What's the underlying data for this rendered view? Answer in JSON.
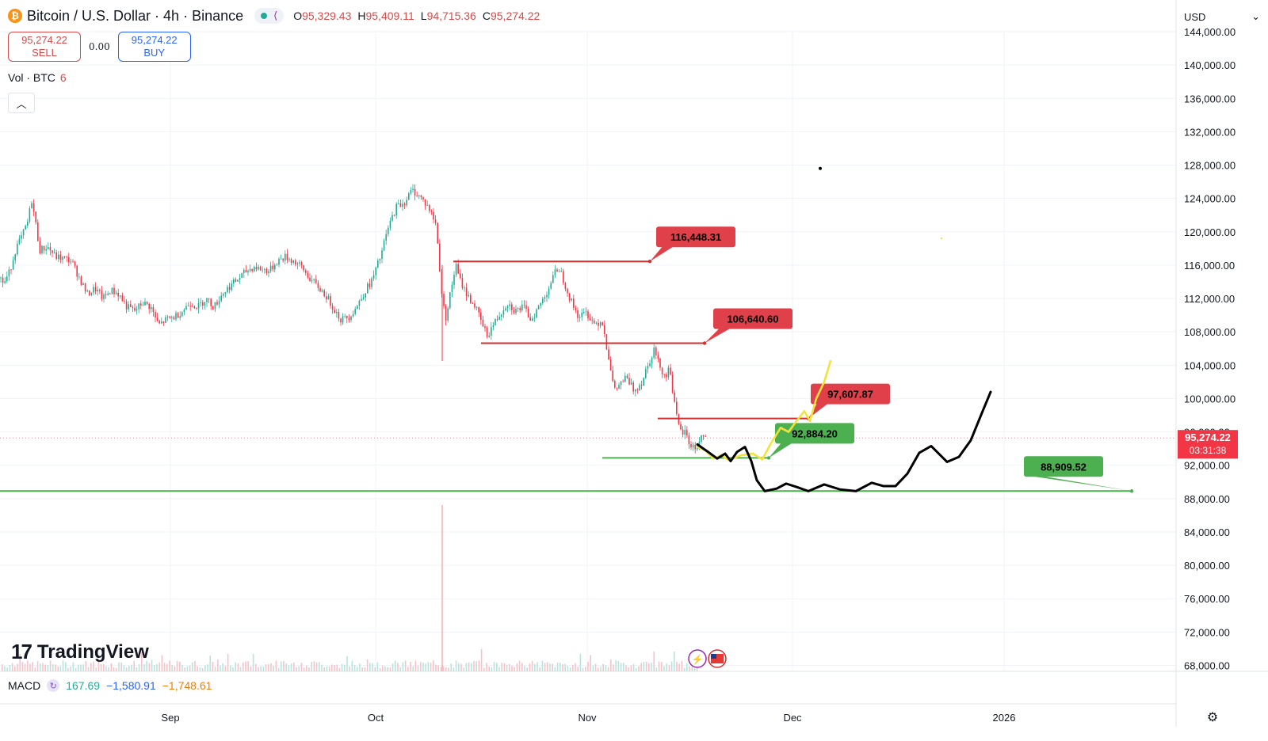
{
  "header": {
    "coin_icon": "bitcoin-icon",
    "title": "Bitcoin / U.S. Dollar · 4h · Binance",
    "ohlc": {
      "o_label": "O",
      "o": "95,329.43",
      "h_label": "H",
      "h": "95,409.11",
      "l_label": "L",
      "l": "94,715.36",
      "c_label": "C",
      "c": "95,274.22"
    }
  },
  "trade": {
    "sell_price": "95,274.22",
    "sell_label": "SELL",
    "spread": "0.00",
    "buy_price": "95,274.22",
    "buy_label": "BUY"
  },
  "volume": {
    "label": "Vol · BTC",
    "value": "6"
  },
  "currency": {
    "value": "USD"
  },
  "branding": {
    "logo_text": "TradingView"
  },
  "macd": {
    "label": "MACD",
    "v1": "167.69",
    "v2": "−1,580.91",
    "v3": "−1,748.61"
  },
  "colors": {
    "up": "#22ab94",
    "down": "#f23645",
    "label_red": "#e0404a",
    "label_green": "#4caf50",
    "line_green": "#4caf50",
    "line_red": "#d32f2f",
    "yellow": "#f2e33c",
    "black": "#000000"
  },
  "chart_data": {
    "type": "candlestick",
    "title": "Bitcoin / U.S. Dollar · 4h · Binance",
    "x_ticks": [
      "Sep",
      "Oct",
      "Nov",
      "Dec",
      "2026"
    ],
    "y_ticks": [
      "68,000.00",
      "72,000.00",
      "76,000.00",
      "80,000.00",
      "84,000.00",
      "88,000.00",
      "92,000.00",
      "96,000.00",
      "100,000.00",
      "104,000.00",
      "108,000.00",
      "112,000.00",
      "116,000.00",
      "120,000.00",
      "124,000.00",
      "128,000.00",
      "132,000.00",
      "136,000.00",
      "140,000.00",
      "144,000.00"
    ],
    "y_range": [
      67500,
      144500
    ],
    "y_scale": "linear",
    "grid": true,
    "last_price": {
      "value": 95274.22,
      "label": "95,274.22",
      "countdown": "03:31:38"
    },
    "price_path": [
      [
        0,
        114500
      ],
      [
        5,
        113800
      ],
      [
        12,
        115200
      ],
      [
        20,
        118000
      ],
      [
        28,
        119500
      ],
      [
        35,
        121200
      ],
      [
        40,
        123800
      ],
      [
        45,
        121000
      ],
      [
        50,
        117800
      ],
      [
        60,
        118200
      ],
      [
        70,
        117000
      ],
      [
        80,
        116800
      ],
      [
        90,
        116500
      ],
      [
        100,
        114500
      ],
      [
        110,
        112500
      ],
      [
        120,
        113200
      ],
      [
        130,
        112000
      ],
      [
        140,
        113000
      ],
      [
        150,
        112500
      ],
      [
        160,
        111000
      ],
      [
        170,
        110500
      ],
      [
        180,
        111500
      ],
      [
        190,
        111000
      ],
      [
        200,
        108800
      ],
      [
        210,
        109500
      ],
      [
        220,
        109800
      ],
      [
        230,
        110500
      ],
      [
        240,
        111500
      ],
      [
        250,
        111000
      ],
      [
        260,
        112000
      ],
      [
        270,
        111000
      ],
      [
        280,
        112500
      ],
      [
        290,
        113500
      ],
      [
        300,
        114300
      ],
      [
        310,
        115200
      ],
      [
        320,
        115800
      ],
      [
        330,
        115500
      ],
      [
        340,
        115300
      ],
      [
        350,
        116500
      ],
      [
        360,
        117000
      ],
      [
        370,
        116500
      ],
      [
        380,
        115800
      ],
      [
        390,
        114500
      ],
      [
        400,
        113500
      ],
      [
        410,
        112500
      ],
      [
        420,
        111000
      ],
      [
        430,
        109500
      ],
      [
        440,
        109800
      ],
      [
        450,
        111000
      ],
      [
        460,
        112800
      ],
      [
        470,
        114300
      ],
      [
        480,
        117000
      ],
      [
        490,
        120500
      ],
      [
        500,
        123000
      ],
      [
        510,
        123500
      ],
      [
        520,
        125000
      ],
      [
        530,
        124200
      ],
      [
        540,
        123000
      ],
      [
        550,
        121000
      ],
      [
        558,
        112000
      ],
      [
        562,
        109500
      ],
      [
        570,
        113500
      ],
      [
        575,
        116000
      ],
      [
        580,
        114300
      ],
      [
        590,
        112300
      ],
      [
        600,
        111000
      ],
      [
        610,
        108500
      ],
      [
        615,
        107500
      ],
      [
        620,
        108500
      ],
      [
        630,
        110000
      ],
      [
        640,
        111500
      ],
      [
        650,
        110500
      ],
      [
        660,
        111000
      ],
      [
        670,
        109500
      ],
      [
        680,
        111000
      ],
      [
        690,
        112800
      ],
      [
        700,
        115000
      ],
      [
        705,
        115800
      ],
      [
        710,
        114500
      ],
      [
        720,
        111800
      ],
      [
        730,
        109800
      ],
      [
        740,
        110300
      ],
      [
        750,
        109000
      ],
      [
        760,
        109300
      ],
      [
        765,
        106500
      ],
      [
        770,
        104000
      ],
      [
        775,
        100800
      ],
      [
        780,
        101500
      ],
      [
        790,
        102500
      ],
      [
        800,
        101000
      ],
      [
        810,
        102000
      ],
      [
        815,
        103500
      ],
      [
        820,
        104600
      ],
      [
        825,
        106000
      ],
      [
        830,
        104500
      ],
      [
        840,
        102500
      ],
      [
        845,
        104000
      ],
      [
        850,
        100000
      ],
      [
        855,
        97000
      ],
      [
        860,
        95800
      ],
      [
        865,
        96000
      ],
      [
        870,
        94500
      ],
      [
        878,
        94000
      ],
      [
        885,
        95500
      ],
      [
        891,
        95274
      ]
    ],
    "volume_spike_x": 558,
    "levels": [
      {
        "name": "level-116448",
        "price": 116448.31,
        "label": "116,448.31",
        "color": "red",
        "x1": 572,
        "x2": 820,
        "label_x": 878
      },
      {
        "name": "level-106640",
        "price": 106640.6,
        "label": "106,640.60",
        "color": "red",
        "x1": 607,
        "x2": 889,
        "label_x": 950
      },
      {
        "name": "level-97607",
        "price": 97607.87,
        "label": "97,607.87",
        "color": "red",
        "x1": 830,
        "x2": 1020,
        "label_x": 1073
      },
      {
        "name": "level-92884",
        "price": 92884.2,
        "label": "92,884.20",
        "color": "green",
        "x1": 760,
        "x2": 970,
        "label_x": 1028
      },
      {
        "name": "level-88909",
        "price": 88909.52,
        "label": "88,909.52",
        "color": "green",
        "x1": 0,
        "x2": 1428,
        "label_x": 1342
      }
    ],
    "projection_black": [
      [
        880,
        94500
      ],
      [
        895,
        93500
      ],
      [
        905,
        92800
      ],
      [
        915,
        93400
      ],
      [
        922,
        92500
      ],
      [
        930,
        93600
      ],
      [
        940,
        94200
      ],
      [
        948,
        92500
      ],
      [
        955,
        90200
      ],
      [
        965,
        88900
      ],
      [
        980,
        89200
      ],
      [
        992,
        89800
      ],
      [
        1005,
        89400
      ],
      [
        1020,
        88900
      ],
      [
        1040,
        89700
      ],
      [
        1060,
        89100
      ],
      [
        1080,
        88900
      ],
      [
        1100,
        89900
      ],
      [
        1115,
        89500
      ],
      [
        1130,
        89500
      ],
      [
        1145,
        91000
      ],
      [
        1160,
        93500
      ],
      [
        1175,
        94300
      ],
      [
        1195,
        92400
      ],
      [
        1210,
        93000
      ],
      [
        1225,
        95000
      ],
      [
        1240,
        98500
      ],
      [
        1250,
        100800
      ]
    ],
    "projection_yellow": [
      [
        880,
        94200
      ],
      [
        890,
        93800
      ],
      [
        900,
        92800
      ],
      [
        910,
        93200
      ],
      [
        920,
        92600
      ],
      [
        935,
        93200
      ],
      [
        950,
        93400
      ],
      [
        962,
        92700
      ],
      [
        972,
        94500
      ],
      [
        985,
        96500
      ],
      [
        995,
        96000
      ],
      [
        1005,
        97300
      ],
      [
        1015,
        98500
      ],
      [
        1022,
        97300
      ],
      [
        1030,
        100000
      ],
      [
        1040,
        102000
      ],
      [
        1048,
        104500
      ]
    ],
    "markers": [
      {
        "type": "dot",
        "x": 1035,
        "price": 127600,
        "color": "black"
      },
      {
        "type": "dot",
        "x": 1188,
        "price": 119200,
        "color": "yellow"
      }
    ],
    "x_tick_positions": {
      "Sep": 215,
      "Oct": 474,
      "Nov": 741,
      "Dec": 1000,
      "2026": 1267
    },
    "icons": [
      "lightning-icon",
      "us-flag-icon"
    ]
  }
}
